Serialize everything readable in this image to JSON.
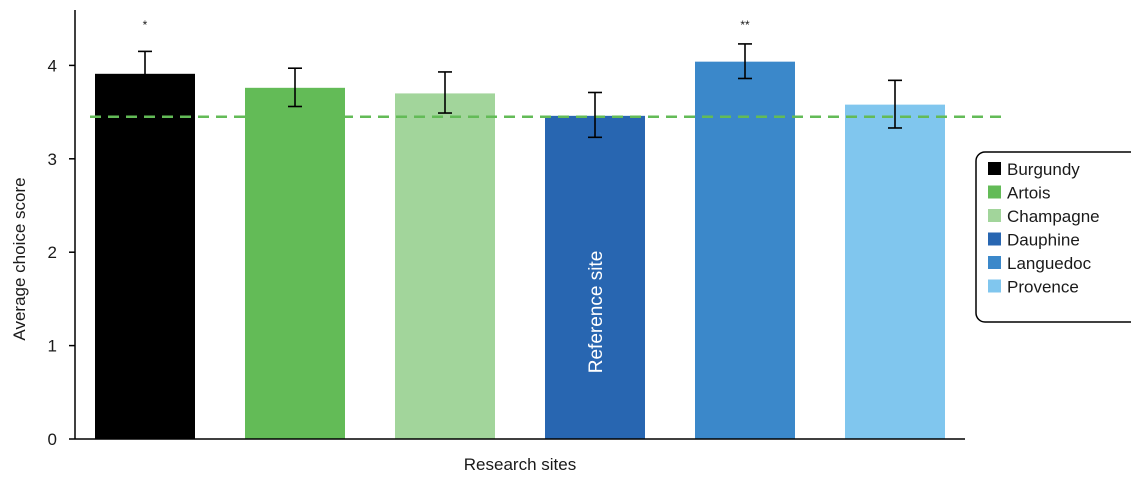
{
  "chart_data": {
    "type": "bar",
    "title": "",
    "xlabel": "Research sites",
    "ylabel": "Average choice score",
    "ylim": [
      0,
      4.5
    ],
    "yticks": [
      0,
      1,
      2,
      3,
      4
    ],
    "grid": false,
    "legend_position": "right",
    "categories": [
      "Burgundy",
      "Artois",
      "Champagne",
      "Dauphine",
      "Languedoc",
      "Provence"
    ],
    "values": [
      3.91,
      3.76,
      3.7,
      3.46,
      4.04,
      3.58
    ],
    "error_low": [
      3.66,
      3.56,
      3.49,
      3.23,
      3.86,
      3.33
    ],
    "error_high": [
      4.15,
      3.97,
      3.93,
      3.71,
      4.23,
      3.84
    ],
    "significance": [
      "*",
      "",
      "",
      "",
      "**",
      ""
    ],
    "colors": [
      "#000000",
      "#63bb57",
      "#a2d59b",
      "#2866b1",
      "#3b88ca",
      "#80c6ee"
    ],
    "reference_line": {
      "value": 3.45,
      "color": "#63bb57",
      "style": "dashed"
    },
    "annotations": [
      {
        "category": "Dauphine",
        "text": "Reference site"
      }
    ]
  }
}
